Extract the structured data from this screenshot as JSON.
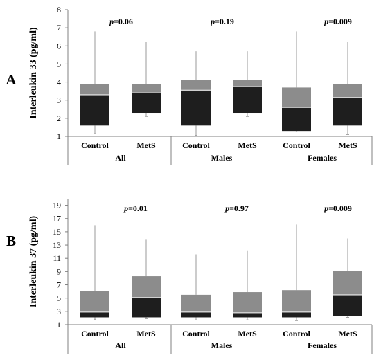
{
  "chart_data": [
    {
      "type": "boxplot",
      "panel_label": "A",
      "ylabel": "Interleukin 33 (pg/ml)",
      "ylim": [
        1,
        8
      ],
      "yticks": [
        "1",
        "2",
        "3",
        "4",
        "5",
        "6",
        "7",
        "8"
      ],
      "categories": [
        "Control",
        "MetS",
        "Control",
        "MetS",
        "Control",
        "MetS"
      ],
      "groups": [
        {
          "label": "All",
          "pvalue": "=0.06"
        },
        {
          "label": "Males",
          "pvalue": "=0.19"
        },
        {
          "label": "Females",
          "pvalue": "=0.009"
        }
      ],
      "boxes": [
        {
          "min": 1.15,
          "q1": 1.6,
          "median": 3.3,
          "q3": 3.9,
          "max": 6.8
        },
        {
          "min": 2.1,
          "q1": 2.3,
          "median": 3.4,
          "q3": 3.9,
          "max": 6.2
        },
        {
          "min": 1.05,
          "q1": 1.6,
          "median": 3.55,
          "q3": 4.1,
          "max": 5.7
        },
        {
          "min": 2.1,
          "q1": 2.3,
          "median": 3.75,
          "q3": 4.1,
          "max": 5.7
        },
        {
          "min": 1.25,
          "q1": 1.3,
          "median": 2.6,
          "q3": 3.7,
          "max": 6.8
        },
        {
          "min": 1.1,
          "q1": 1.6,
          "median": 3.15,
          "q3": 3.9,
          "max": 6.2
        }
      ]
    },
    {
      "type": "boxplot",
      "panel_label": "B",
      "ylabel": "Interleukin 37 (pg/ml)",
      "ylim": [
        1,
        20
      ],
      "yticks": [
        "1",
        "3",
        "5",
        "7",
        "9",
        "11",
        "13",
        "15",
        "17",
        "19"
      ],
      "categories": [
        "Control",
        "MetS",
        "Control",
        "MetS",
        "Control",
        "MetS"
      ],
      "groups": [
        {
          "label": "All",
          "pvalue": "=0.01"
        },
        {
          "label": "Males",
          "pvalue": "=0.97"
        },
        {
          "label": "Females",
          "pvalue": "=0.009"
        }
      ],
      "boxes": [
        {
          "min": 1.8,
          "q1": 2.1,
          "median": 2.9,
          "q3": 6.1,
          "max": 16.0
        },
        {
          "min": 1.9,
          "q1": 2.1,
          "median": 5.1,
          "q3": 8.3,
          "max": 13.8
        },
        {
          "min": 1.7,
          "q1": 2.1,
          "median": 2.9,
          "q3": 5.5,
          "max": 11.6
        },
        {
          "min": 1.7,
          "q1": 2.1,
          "median": 2.8,
          "q3": 5.9,
          "max": 12.2
        },
        {
          "min": 1.6,
          "q1": 2.1,
          "median": 2.9,
          "q3": 6.2,
          "max": 16.1
        },
        {
          "min": 2.1,
          "q1": 2.3,
          "median": 5.5,
          "q3": 9.1,
          "max": 14.0
        }
      ]
    }
  ],
  "pvalue_prefix": "p",
  "colors": {
    "lower_box": "#1e1e1e",
    "upper_box": "#8c8c8c",
    "median_line": "#d0d0d0",
    "whisker": "#9a9a9a",
    "axis": "#808080"
  }
}
